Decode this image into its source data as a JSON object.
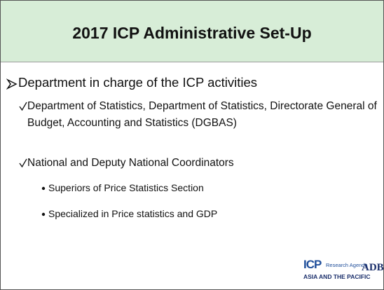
{
  "title": "2017 ICP Administrative Set-Up",
  "list": {
    "text": "Department in charge of the ICP activities",
    "items": [
      {
        "text": "Department of Statistics, Department of Statistics, Directorate General of Budget, Accounting and Statistics (DGBAS)"
      },
      {
        "text": "National and Deputy National Coordinators",
        "items": [
          "Superiors of Price Statistics Section",
          "Specialized in Price statistics and GDP"
        ]
      }
    ]
  },
  "logos": {
    "icp": "ICP",
    "research": "Research Agenda",
    "region": "ASIA AND THE PACIFIC",
    "adb": "ADB"
  }
}
